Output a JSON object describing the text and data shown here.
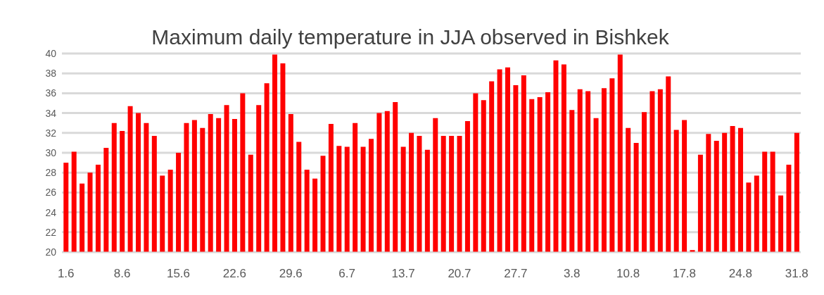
{
  "chart_data": {
    "type": "bar",
    "title": "Maximum daily temperature in JJA observed in Bishkek",
    "categories": [
      "1.6",
      null,
      null,
      null,
      null,
      null,
      null,
      "8.6",
      null,
      null,
      null,
      null,
      null,
      null,
      "15.6",
      null,
      null,
      null,
      null,
      null,
      null,
      "22.6",
      null,
      null,
      null,
      null,
      null,
      null,
      "29.6",
      null,
      null,
      null,
      null,
      null,
      null,
      "6.7",
      null,
      null,
      null,
      null,
      null,
      null,
      "13.7",
      null,
      null,
      null,
      null,
      null,
      null,
      "20.7",
      null,
      null,
      null,
      null,
      null,
      null,
      "27.7",
      null,
      null,
      null,
      null,
      null,
      null,
      "3.8",
      null,
      null,
      null,
      null,
      null,
      null,
      "10.8",
      null,
      null,
      null,
      null,
      null,
      null,
      "17.8",
      null,
      null,
      null,
      null,
      null,
      null,
      "24.8",
      null,
      null,
      null,
      null,
      null,
      null,
      "31.8"
    ],
    "values": [
      29,
      30.1,
      26.9,
      28,
      28.8,
      30.5,
      33,
      32.2,
      34.7,
      34,
      33,
      31.7,
      27.7,
      28.3,
      30,
      33,
      33.3,
      32.5,
      33.9,
      33.5,
      34.8,
      33.4,
      36,
      29.8,
      34.8,
      37,
      39.9,
      39,
      33.9,
      31.1,
      28.3,
      27.4,
      29.7,
      32.9,
      30.7,
      30.6,
      33,
      30.6,
      31.4,
      34,
      34.2,
      35.1,
      30.6,
      32,
      31.7,
      30.3,
      33.5,
      31.7,
      31.7,
      31.7,
      33.2,
      36,
      35.3,
      37.2,
      38.4,
      38.6,
      36.8,
      37.8,
      35.4,
      35.6,
      36.1,
      39.3,
      38.9,
      34.3,
      36.4,
      36.2,
      33.5,
      36.5,
      37.5,
      39.9,
      32.5,
      31,
      34.1,
      36.2,
      36.4,
      37.7,
      32.3,
      33.3,
      20.2,
      29.8,
      31.9,
      31.2,
      32,
      32.7,
      32.5,
      27,
      27.7,
      30.1,
      30.1,
      25.7,
      28.8,
      32
    ],
    "color": "#ff0000",
    "ylim": [
      20,
      40
    ],
    "yticks": [
      20,
      22,
      24,
      26,
      28,
      30,
      32,
      34,
      36,
      38,
      40
    ],
    "grid": "y"
  }
}
